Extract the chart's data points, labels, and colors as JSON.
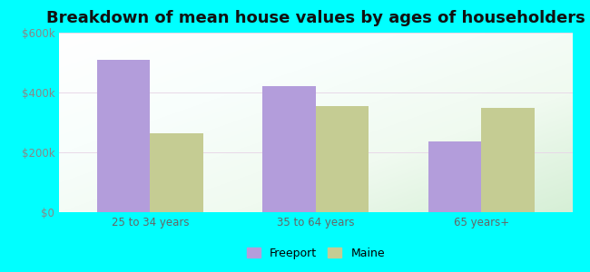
{
  "title": "Breakdown of mean house values by ages of householders",
  "categories": [
    "25 to 34 years",
    "35 to 64 years",
    "65 years+"
  ],
  "freeport_values": [
    510000,
    420000,
    235000
  ],
  "maine_values": [
    265000,
    355000,
    350000
  ],
  "freeport_color": "#b39ddb",
  "maine_color": "#c5cc93",
  "ylim": [
    0,
    600000
  ],
  "yticks": [
    0,
    200000,
    400000,
    600000
  ],
  "ytick_labels": [
    "$0",
    "$200k",
    "$400k",
    "$600k"
  ],
  "legend_labels": [
    "Freeport",
    "Maine"
  ],
  "background_color": "#00ffff",
  "title_fontsize": 13,
  "bar_width": 0.32,
  "tick_color": "#888888",
  "label_color": "#666666"
}
